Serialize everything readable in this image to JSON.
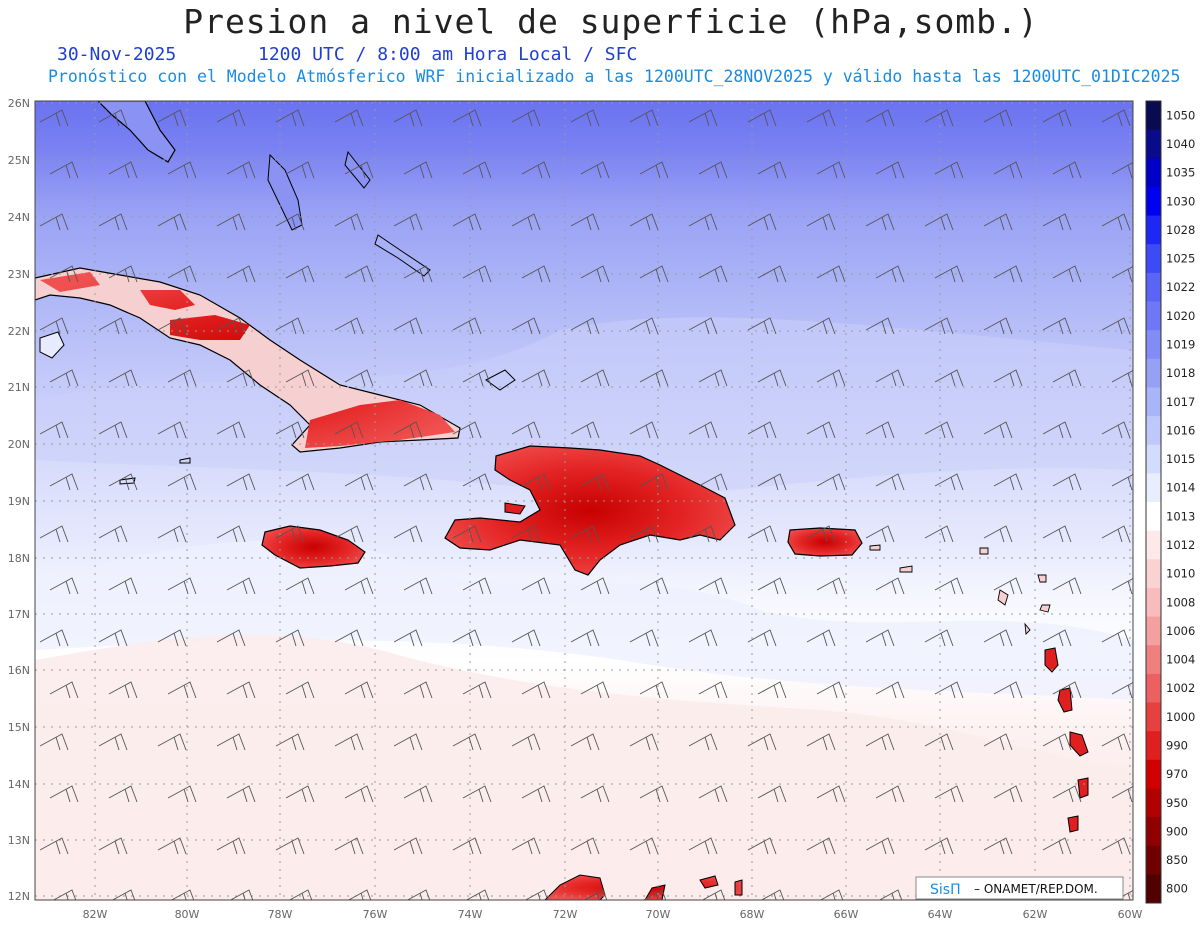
{
  "header": {
    "title": "Presion a nivel de superficie (hPa,somb.)",
    "date": "30-Nov-2025",
    "time": "1200 UTC / 8:00 am Hora Local / SFC",
    "subtitle": "Pronóstico con el Modelo Atmósferico WRF inicializado a las 1200UTC_28NOV2025 y válido hasta las  1200UTC_01DIC2025"
  },
  "map": {
    "lat_labels": [
      "26N",
      "25N",
      "24N",
      "23N",
      "22N",
      "21N",
      "20N",
      "19N",
      "18N",
      "17N",
      "16N",
      "15N",
      "14N",
      "13N",
      "12N"
    ],
    "lon_labels": [
      "82W",
      "80W",
      "78W",
      "76W",
      "74W",
      "72W",
      "70W",
      "68W",
      "66W",
      "64W",
      "62W",
      "60W"
    ],
    "lat_range": [
      12,
      26
    ],
    "lon_range": [
      -83.2,
      -60
    ]
  },
  "colorbar": {
    "levels": [
      "1050",
      "1040",
      "1035",
      "1030",
      "1028",
      "1025",
      "1022",
      "1020",
      "1019",
      "1018",
      "1017",
      "1016",
      "1015",
      "1014",
      "1013",
      "1012",
      "1010",
      "1008",
      "1006",
      "1004",
      "1002",
      "1000",
      "990",
      "970",
      "950",
      "900",
      "850",
      "800"
    ],
    "colors": [
      "#0a0a50",
      "#0a0a8c",
      "#0000c8",
      "#0000f0",
      "#1e28f5",
      "#3c4bf5",
      "#5a64f5",
      "#6e78f5",
      "#828cf5",
      "#96a0f5",
      "#aab4f8",
      "#bec8fa",
      "#d2dcfc",
      "#e8eefe",
      "#ffffff",
      "#fde9e9",
      "#fbd2d2",
      "#f8bcbc",
      "#f5a0a0",
      "#f08080",
      "#eb6060",
      "#e64040",
      "#e02020",
      "#d00000",
      "#b00000",
      "#900000",
      "#700000",
      "#500000"
    ]
  },
  "credit": {
    "brand": "SisΠ",
    "org": "– ONAMET/REP.DOM."
  }
}
